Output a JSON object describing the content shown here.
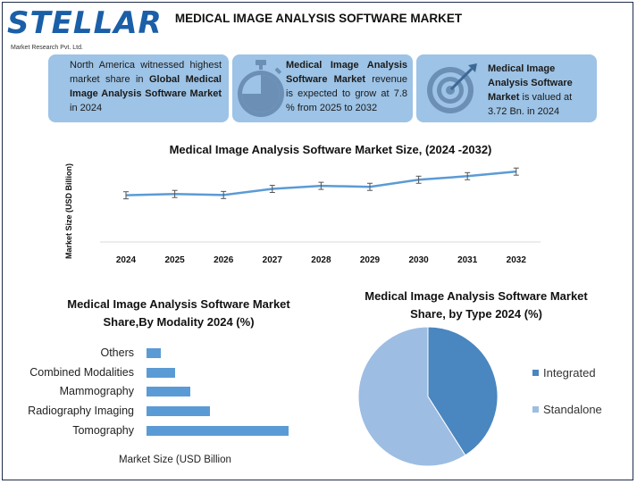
{
  "logo": {
    "name": "STELLAR",
    "tagline": "Market Research Pvt. Ltd."
  },
  "title": "MEDICAL IMAGE ANALYSIS SOFTWARE MARKET",
  "cards": [
    {
      "pre": "North America witnessed highest market share in ",
      "bold": "Global Medical Image Analysis Software Market",
      "post": " in 2024"
    },
    {
      "pre": "",
      "bold": "Medical Image Analysis Software Market",
      "post": " revenue is expected to grow at 7.8 % from 2025 to 2032"
    },
    {
      "pre": "",
      "bold": "Medical Image Analysis Software Market",
      "post": " is valued at 3.72 Bn. in 2024"
    }
  ],
  "icons": {
    "card1": "stopwatch-icon",
    "card2": "target-icon"
  },
  "colors": {
    "card_bg": "#9dc3e6",
    "accent": "#5b9bd5",
    "dark_blue": "#4a86bf",
    "light_blue": "#9dbde3",
    "brand": "#1a5fa8"
  },
  "chart_data": [
    {
      "type": "line",
      "title": "Medical Image Analysis Software Market Size, (2024 -2032)",
      "xlabel": "",
      "ylabel": "Market Size (USD Billion)",
      "x": [
        "2024",
        "2025",
        "2026",
        "2027",
        "2028",
        "2029",
        "2030",
        "2031",
        "2032"
      ],
      "series": [
        {
          "values": [
            3.72,
            3.85,
            3.75,
            4.35,
            4.65,
            4.55,
            5.25,
            5.6,
            6.05
          ],
          "error": 0.35
        }
      ],
      "ylim": [
        0,
        8
      ],
      "grid": false
    },
    {
      "type": "bar",
      "orientation": "horizontal",
      "title": "Medical Image Analysis Software Market Share,By Modality 2024 (%)",
      "xlabel": "Market Size (USD Billion",
      "categories": [
        "Others",
        "Combined Modalities",
        "Mammography",
        "Radiography Imaging",
        "Tomography"
      ],
      "values": [
        1.0,
        2.0,
        3.0,
        4.4,
        9.8
      ],
      "xlim": [
        0,
        10
      ]
    },
    {
      "type": "pie",
      "title": "Medical Image Analysis Software Market Share, by Type 2024  (%)",
      "categories": [
        "Integrated",
        "Standalone"
      ],
      "values": [
        41,
        59
      ],
      "colors": [
        "#4a86bf",
        "#9dbde3"
      ],
      "legend": "right"
    }
  ]
}
